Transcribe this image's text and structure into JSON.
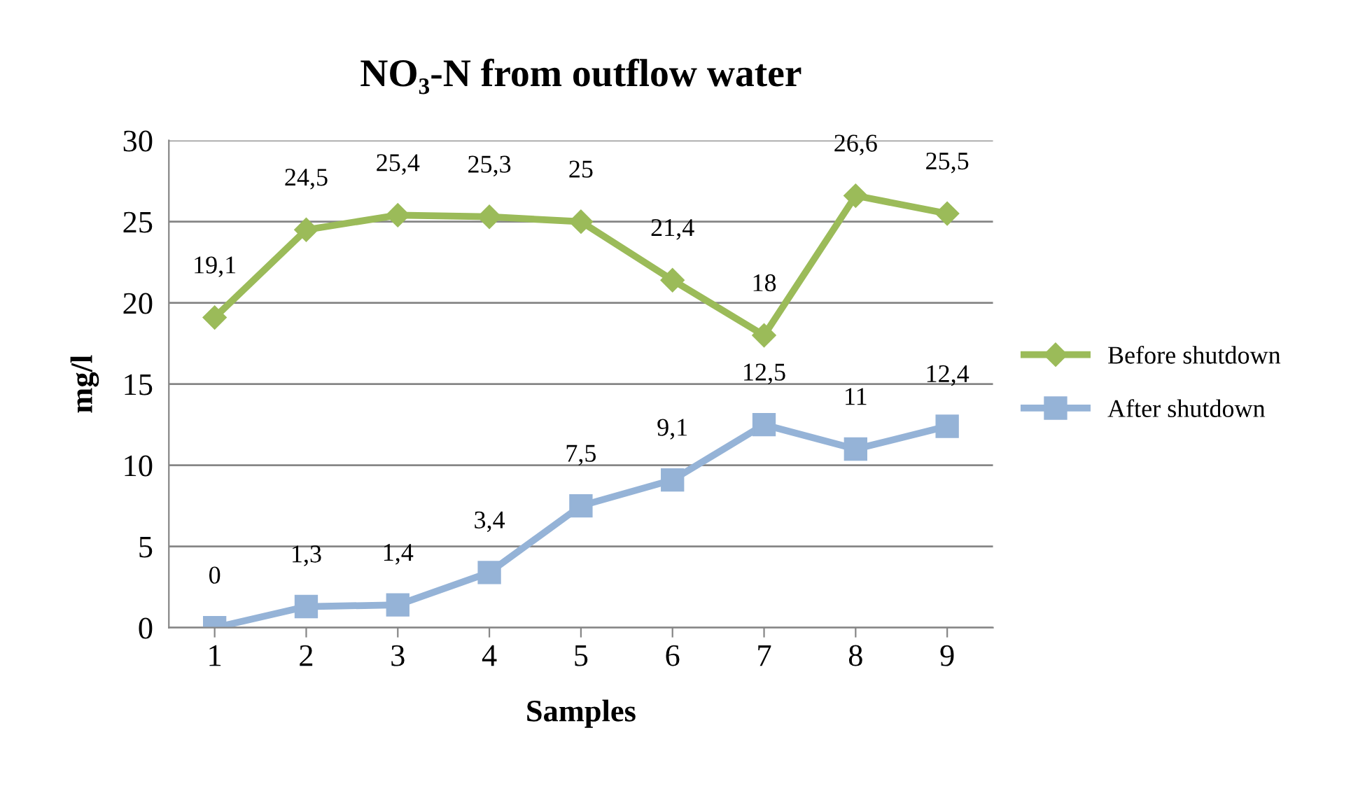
{
  "chart_data": {
    "type": "line",
    "title": "NO₃-N from outflow water",
    "xlabel": "Samples",
    "ylabel": "mg/l",
    "categories": [
      "1",
      "2",
      "3",
      "4",
      "5",
      "6",
      "7",
      "8",
      "9"
    ],
    "series": [
      {
        "name": "Before shutdown",
        "color": "#9bbb59",
        "marker": "diamond",
        "values": [
          19.1,
          24.5,
          25.4,
          25.3,
          25,
          21.4,
          18,
          26.6,
          25.5
        ],
        "value_labels": [
          "19,1",
          "24,5",
          "25,4",
          "25,3",
          "25",
          "21,4",
          "18",
          "26,6",
          "25,5"
        ]
      },
      {
        "name": "After shutdown",
        "color": "#95b3d7",
        "marker": "square",
        "values": [
          0,
          1.3,
          1.4,
          3.4,
          7.5,
          9.1,
          12.5,
          11,
          12.4
        ],
        "value_labels": [
          "0",
          "1,3",
          "1,4",
          "3,4",
          "7,5",
          "9,1",
          "12,5",
          "11",
          "12,4"
        ]
      }
    ],
    "ylim": [
      0,
      30
    ],
    "yticks": [
      0,
      5,
      10,
      15,
      20,
      25,
      30
    ],
    "grid": "y",
    "legend": "right",
    "line_style": "solid"
  }
}
